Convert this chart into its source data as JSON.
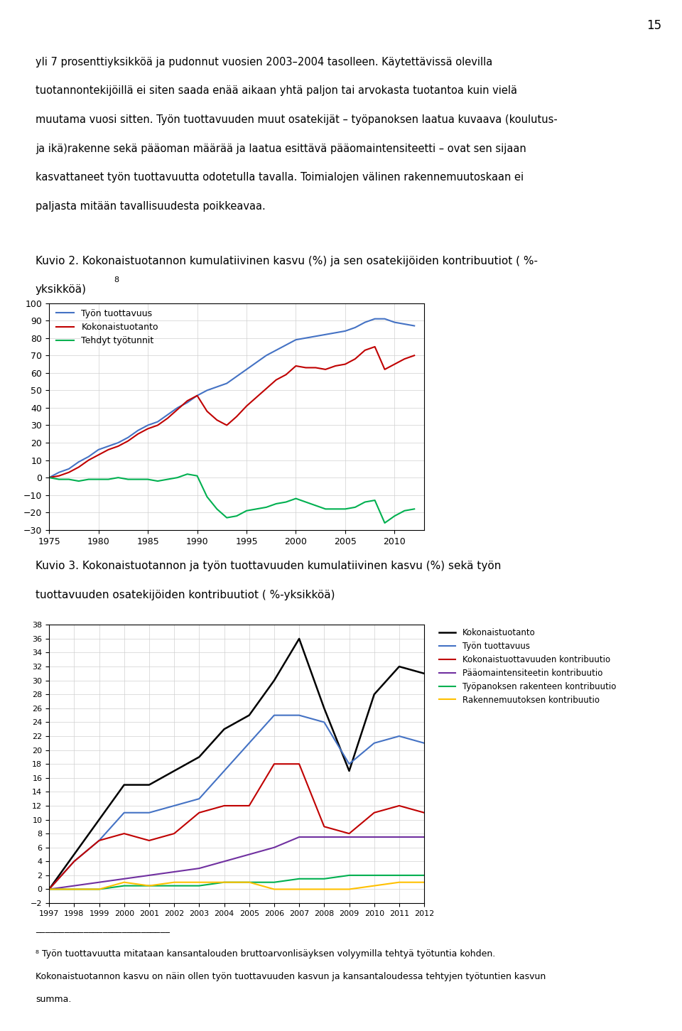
{
  "page_number": "15",
  "intro_text_lines": [
    "yli 7 prosenttiyksikköä ja pudonnut vuosien 2003–2004 tasolleen. Käytettävissä olevilla",
    "tuotannontekijöillä ei siten saada enää aikaan yhtä paljon tai arvokasta tuotantoa kuin vielä",
    "muutama vuosi sitten. Työn tuottavuuden muut osatekijät – työpanoksen laatua kuvaava (koulutus-",
    "ja ikä)rakenne sekä pääoman määrää ja laatua esittävä pääomaintensiteetti – ovat sen sijaan",
    "kasvattaneet työn tuottavuutta odotetulla tavalla. Toimialojen välinen rakennemuutoskaan ei",
    "paljasta mitään tavallisuudesta poikkeavaa."
  ],
  "fig2_title_line1": "Kuvio 2. Kokonaistuotannon kumulatiivinen kasvu (%) ja sen osatekijöiden kontribuutiot ( %-",
  "fig2_title_line2": "yksikköä)",
  "fig2_title_superscript": "8",
  "fig3_title_line1": "Kuvio 3. Kokonaistuotannon ja työn tuottavuuden kumulatiivinen kasvu (%) sekä työn",
  "fig3_title_line2": "tuottavuuden osatekijöiden kontribuutiot ( %-yksikköä)",
  "footnote_line1": "⁸ Työn tuottavuutta mitataan kansantalouden bruttoarvonlisäyksen volyymilla tehtyä työtuntia kohden.",
  "footnote_line2": "Kokonaistuotannon kasvu on näin ollen työn tuottavuuden kasvun ja kansantaloudessa tehtyjen työtuntien kasvun",
  "footnote_line3": "summa.",
  "fig2": {
    "years": [
      1975,
      1976,
      1977,
      1978,
      1979,
      1980,
      1981,
      1982,
      1983,
      1984,
      1985,
      1986,
      1987,
      1988,
      1989,
      1990,
      1991,
      1992,
      1993,
      1994,
      1995,
      1996,
      1997,
      1998,
      1999,
      2000,
      2001,
      2002,
      2003,
      2004,
      2005,
      2006,
      2007,
      2008,
      2009,
      2010,
      2011,
      2012
    ],
    "tyon_tuottavuus": [
      0,
      3,
      5,
      9,
      12,
      16,
      18,
      20,
      23,
      27,
      30,
      32,
      36,
      40,
      43,
      47,
      50,
      52,
      54,
      58,
      62,
      66,
      70,
      73,
      76,
      79,
      80,
      81,
      82,
      83,
      84,
      86,
      89,
      91,
      91,
      89,
      88,
      87
    ],
    "kokonaistuotanto": [
      0,
      1,
      3,
      6,
      10,
      13,
      16,
      18,
      21,
      25,
      28,
      30,
      34,
      39,
      44,
      47,
      38,
      33,
      30,
      35,
      41,
      46,
      51,
      56,
      59,
      64,
      63,
      63,
      62,
      64,
      65,
      68,
      73,
      75,
      62,
      65,
      68,
      70
    ],
    "tehdyt_tyotunnit": [
      0,
      -1,
      -1,
      -2,
      -1,
      -1,
      -1,
      0,
      -1,
      -1,
      -1,
      -2,
      -1,
      0,
      2,
      1,
      -11,
      -18,
      -23,
      -22,
      -19,
      -18,
      -17,
      -15,
      -14,
      -12,
      -14,
      -16,
      -18,
      -18,
      -18,
      -17,
      -14,
      -13,
      -26,
      -22,
      -19,
      -18
    ],
    "ylim": [
      -30,
      100
    ],
    "yticks": [
      -30,
      -20,
      -10,
      0,
      10,
      20,
      30,
      40,
      50,
      60,
      70,
      80,
      90,
      100
    ],
    "xlim": [
      1975,
      2013
    ],
    "xticks": [
      1975,
      1980,
      1985,
      1990,
      1995,
      2000,
      2005,
      2010
    ],
    "colors": {
      "tyon_tuottavuus": "#4472C4",
      "kokonaistuotanto": "#C00000",
      "tehdyt_tyotunnit": "#00B050"
    },
    "legend_labels": [
      "Työn tuottavuus",
      "Kokonaistuotanto",
      "Tehdyt työtunnit"
    ]
  },
  "fig3": {
    "years": [
      1997,
      1998,
      1999,
      2000,
      2001,
      2002,
      2003,
      2004,
      2005,
      2006,
      2007,
      2008,
      2009,
      2010,
      2011,
      2012
    ],
    "kokonaistuotanto": [
      0,
      5,
      10,
      15,
      15,
      17,
      19,
      23,
      25,
      30,
      36,
      26,
      17,
      28,
      32,
      31
    ],
    "tyon_tuottavuus": [
      0,
      4,
      7,
      11,
      11,
      12,
      13,
      17,
      21,
      25,
      25,
      24,
      18,
      21,
      22,
      21
    ],
    "kokonaistuottavuuden_kontribuutio": [
      0,
      4,
      7,
      8,
      7,
      8,
      11,
      12,
      12,
      18,
      18,
      9,
      8,
      11,
      12,
      11
    ],
    "paaomaintensiteetin_kontribuutio": [
      0,
      0.5,
      1,
      1.5,
      2,
      2.5,
      3,
      4,
      5,
      6,
      7.5,
      7.5,
      7.5,
      7.5,
      7.5,
      7.5
    ],
    "tyopanoksen_rakenteen_kontribuutio": [
      0,
      0,
      0,
      0.5,
      0.5,
      0.5,
      0.5,
      1,
      1,
      1,
      1.5,
      1.5,
      2,
      2,
      2,
      2
    ],
    "rakennemuutoksen_kontribuutio": [
      0,
      0,
      0,
      1,
      0.5,
      1,
      1,
      1,
      1,
      0,
      0,
      0,
      0,
      0.5,
      1,
      1
    ],
    "ylim": [
      -2,
      38
    ],
    "yticks": [
      -2,
      0,
      2,
      4,
      6,
      8,
      10,
      12,
      14,
      16,
      18,
      20,
      22,
      24,
      26,
      28,
      30,
      32,
      34,
      36,
      38
    ],
    "xlim_start": 1997,
    "xlim_end": 2012,
    "colors": {
      "kokonaistuotanto": "#000000",
      "tyon_tuottavuus": "#4472C4",
      "kokonaistuottavuuden_kontribuutio": "#C00000",
      "paaomaintensiteetin_kontribuutio": "#7030A0",
      "tyopanoksen_rakenteen_kontribuutio": "#00B050",
      "rakennemuutoksen_kontribuutio": "#FFC000"
    },
    "legend_labels": [
      "Kokonaistuotanto",
      "Työn tuottavuus",
      "Kokonaistuottavuuden kontribuutio",
      "Pääomaintensiteetin kontribuutio",
      "Työpanoksen rakenteen kontribuutio",
      "Rakennemuutoksen kontribuutio"
    ]
  }
}
